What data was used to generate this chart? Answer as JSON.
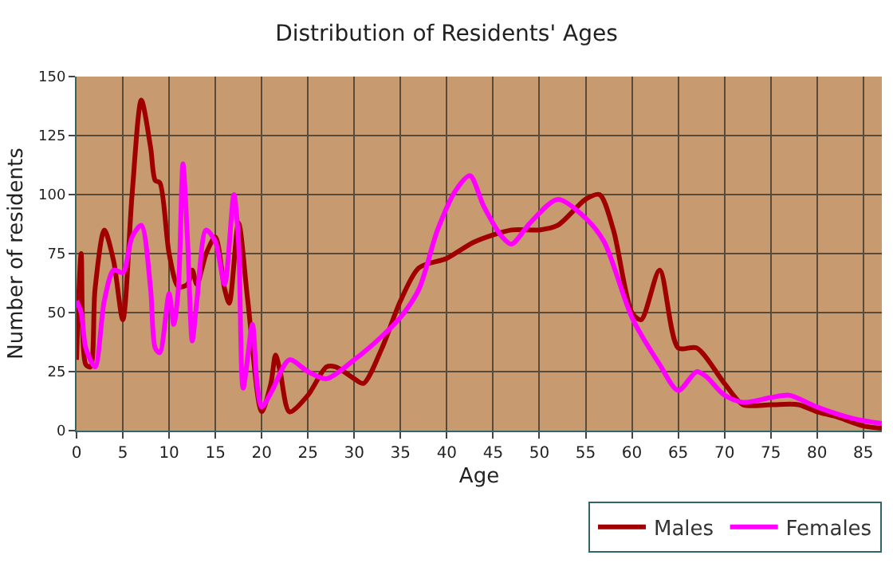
{
  "chart_data": {
    "type": "line",
    "title": "Distribution of Residents' Ages",
    "xlabel": "Age",
    "ylabel": "Number of residents",
    "xlim": [
      0,
      87
    ],
    "xticks": [
      0,
      5,
      10,
      15,
      20,
      25,
      30,
      35,
      40,
      45,
      50,
      55,
      60,
      65,
      70,
      75,
      80,
      85
    ],
    "ylim": [
      0,
      150
    ],
    "yticks": [
      0,
      25,
      50,
      75,
      100,
      125,
      150
    ],
    "grid": true,
    "legend": "bottom right",
    "marker": "none",
    "line_style": "solid",
    "series": [
      {
        "name": "Males",
        "color": "#a00000",
        "x": [
          0,
          0.5,
          1,
          1.5,
          2,
          3,
          4,
          5,
          6,
          7,
          8,
          8.5,
          9,
          10,
          11,
          12,
          12.5,
          13,
          14,
          15,
          16,
          16.5,
          17.5,
          18.5,
          20,
          21,
          21.5,
          22,
          23,
          25,
          27,
          28,
          30,
          31,
          33,
          35,
          37,
          40,
          43,
          47,
          50,
          52,
          55,
          56.5,
          58,
          60,
          61,
          63,
          65,
          67,
          70,
          72,
          75,
          78,
          80,
          82,
          85,
          87
        ],
        "values": [
          30,
          75,
          28,
          27,
          60,
          85,
          72,
          47,
          100,
          140,
          120,
          106,
          105,
          75,
          61,
          62,
          68,
          62,
          75,
          82,
          60,
          54,
          88,
          55,
          8,
          20,
          32,
          25,
          8,
          15,
          27,
          27,
          22,
          20,
          35,
          55,
          69,
          73,
          80,
          85,
          85,
          87,
          98,
          100,
          85,
          50,
          47,
          68,
          35,
          35,
          20,
          11,
          11,
          11,
          8,
          6,
          2,
          1
        ]
      },
      {
        "name": "Females",
        "color": "#ff00ff",
        "x": [
          0,
          0.5,
          1,
          2,
          3,
          4,
          5,
          6,
          7,
          8,
          8.5,
          9,
          10,
          10.5,
          11,
          11.5,
          12,
          12.5,
          13,
          14,
          15,
          16,
          17,
          17.5,
          18,
          19,
          19.5,
          20,
          21,
          23,
          25,
          27,
          30,
          33,
          35,
          37,
          39,
          41,
          42.5,
          44,
          46,
          47,
          49,
          52,
          55,
          57,
          60,
          63,
          65,
          67,
          68,
          70,
          72,
          75,
          77,
          80,
          84,
          87
        ],
        "values": [
          55,
          50,
          35,
          27,
          55,
          68,
          67,
          82,
          87,
          60,
          35,
          33,
          58,
          45,
          60,
          113,
          80,
          38,
          55,
          85,
          80,
          62,
          100,
          80,
          18,
          45,
          20,
          10,
          16,
          30,
          25,
          22,
          30,
          40,
          48,
          60,
          85,
          102,
          108,
          95,
          82,
          79,
          88,
          98,
          90,
          80,
          48,
          28,
          17,
          25,
          23,
          15,
          12,
          14,
          15,
          10,
          5,
          3
        ]
      }
    ]
  }
}
